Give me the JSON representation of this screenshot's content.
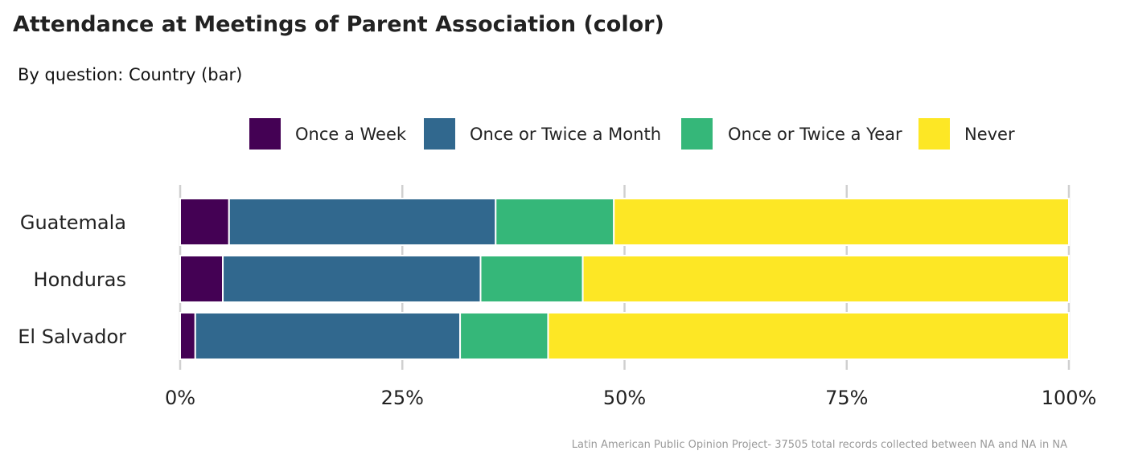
{
  "chart_data": {
    "type": "bar",
    "orientation": "horizontal",
    "stacked": "percent",
    "title": "Attendance at Meetings of Parent Association (color)",
    "subtitle": "By question: Country (bar)",
    "caption": "Latin American Public Opinion Project- 37505 total records collected between NA and NA in  NA",
    "categories": [
      "Guatemala",
      "Honduras",
      "El Salvador"
    ],
    "series": [
      {
        "name": "Once a Week",
        "color": "#440154",
        "values": [
          0.055,
          0.048,
          0.017
        ]
      },
      {
        "name": "Once or Twice a Month",
        "color": "#31688E",
        "values": [
          0.3,
          0.29,
          0.298
        ]
      },
      {
        "name": "Once or Twice a Year",
        "color": "#35B779",
        "values": [
          0.133,
          0.115,
          0.099
        ]
      },
      {
        "name": "Never",
        "color": "#FDE725",
        "values": [
          0.512,
          0.547,
          0.586
        ]
      }
    ],
    "xaxis": {
      "ticks": [
        0,
        0.25,
        0.5,
        0.75,
        1
      ],
      "tick_labels": [
        "0%",
        "25%",
        "50%",
        "75%",
        "100%"
      ],
      "xlim": [
        0,
        1
      ]
    },
    "xlabel": "",
    "ylabel": "",
    "grid": "vertical major",
    "legend_position": "top"
  }
}
